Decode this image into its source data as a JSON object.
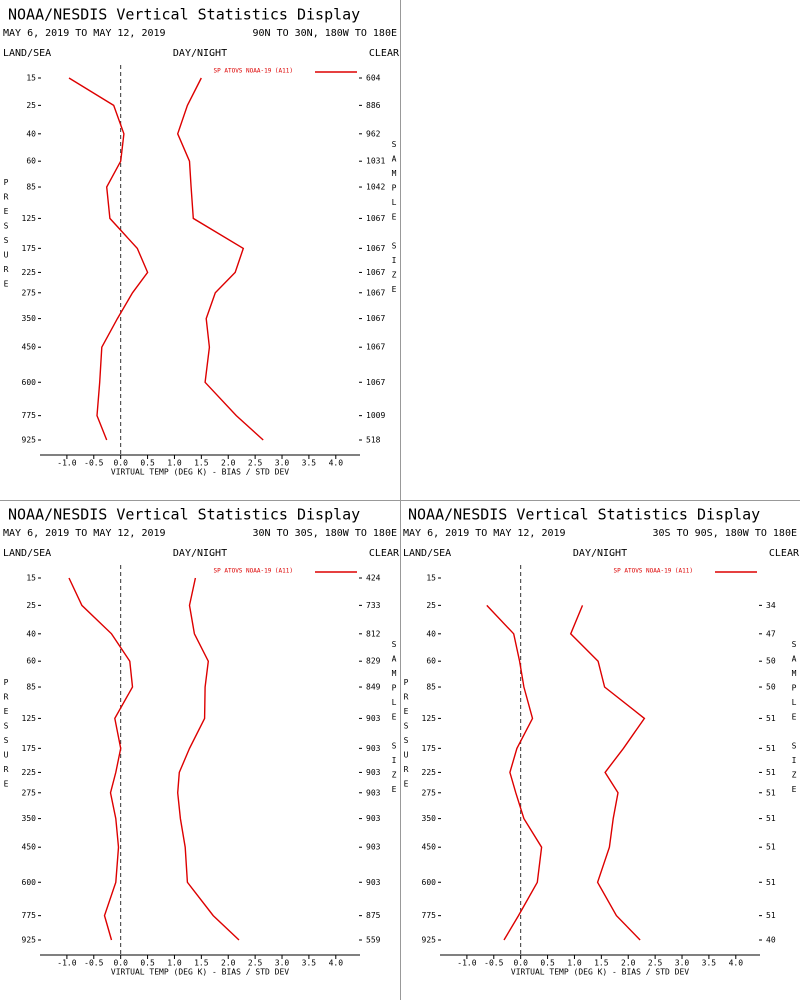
{
  "chart_data": [
    {
      "type": "profile",
      "title": "NOAA/NESDIS Vertical Statistics Display",
      "subtitle": "MAY 6, 2019 TO MAY 12, 2019",
      "region": "90N TO 30N, 180W TO 180E",
      "header_left": "LAND/SEA",
      "header_center": "DAY/NIGHT",
      "header_right": "CLEAR",
      "x_label": "VIRTUAL TEMP (DEG K) - BIAS / STD DEV",
      "y_label": "PRESSURE",
      "y2_label": "SAMPLE SIZE",
      "y": [
        15,
        25,
        40,
        60,
        85,
        125,
        175,
        225,
        275,
        350,
        450,
        600,
        775,
        925
      ],
      "sample_size": [
        604,
        886,
        962,
        1031,
        1042,
        1067,
        1067,
        1067,
        1067,
        1067,
        1067,
        1067,
        1009,
        518
      ],
      "series": [
        {
          "name": "SP ATOVS NOAA-19 (A11)",
          "color": "#dd0000",
          "values": [
            -0.96,
            -0.13,
            0.06,
            0.0,
            -0.26,
            -0.2,
            0.31,
            0.5,
            0.22,
            -0.06,
            -0.35,
            -0.39,
            -0.44,
            -0.26
          ],
          "std_dev": [
            1.5,
            1.24,
            1.06,
            1.28,
            1.31,
            1.35,
            2.28,
            2.13,
            1.76,
            1.59,
            1.65,
            1.57,
            2.15,
            2.65
          ]
        }
      ],
      "xlim": [
        -1.5,
        4.45
      ],
      "xticks": [
        {
          "value": -1,
          "label": "-1.0"
        },
        -0.5,
        {
          "value": 0,
          "label": "0.0"
        },
        0.5,
        {
          "value": 1,
          "label": "1.0"
        },
        1.5,
        {
          "value": 2,
          "label": "2.0"
        },
        2.5,
        {
          "value": 3,
          "label": "3.0"
        },
        3.5,
        {
          "value": 4,
          "label": "4.0"
        }
      ]
    },
    {
      "type": "profile",
      "title": "NOAA/NESDIS Vertical Statistics Display",
      "subtitle": "MAY 6, 2019 TO MAY 12, 2019",
      "region": "30N TO 30S, 180W TO 180E",
      "header_left": "LAND/SEA",
      "header_center": "DAY/NIGHT",
      "header_right": "CLEAR",
      "x_label": "VIRTUAL TEMP (DEG K) - BIAS / STD DEV",
      "y_label": "PRESSURE",
      "y2_label": "SAMPLE SIZE",
      "y": [
        15,
        25,
        40,
        60,
        85,
        125,
        175,
        225,
        275,
        350,
        450,
        600,
        775,
        925
      ],
      "sample_size": [
        424,
        733,
        812,
        829,
        849,
        903,
        903,
        903,
        903,
        903,
        903,
        903,
        875,
        559
      ],
      "series": [
        {
          "name": "SP ATOVS NOAA-19 (A11)",
          "color": "#dd0000",
          "values": [
            -0.96,
            -0.72,
            -0.17,
            0.17,
            0.22,
            -0.11,
            0.0,
            -0.09,
            -0.19,
            -0.09,
            -0.04,
            -0.09,
            -0.3,
            -0.17
          ],
          "std_dev": [
            1.39,
            1.28,
            1.37,
            1.63,
            1.57,
            1.56,
            1.28,
            1.09,
            1.06,
            1.11,
            1.2,
            1.24,
            1.72,
            2.2
          ]
        }
      ],
      "xlim": [
        -1.5,
        4.45
      ],
      "xticks": [
        {
          "value": -1,
          "label": "-1.0"
        },
        -0.5,
        {
          "value": 0,
          "label": "0.0"
        },
        0.5,
        {
          "value": 1,
          "label": "1.0"
        },
        1.5,
        {
          "value": 2,
          "label": "2.0"
        },
        2.5,
        {
          "value": 3,
          "label": "3.0"
        },
        3.5,
        {
          "value": 4,
          "label": "4.0"
        }
      ]
    },
    {
      "type": "profile",
      "title": "NOAA/NESDIS Vertical Statistics Display",
      "subtitle": "MAY 6, 2019 TO MAY 12, 2019",
      "region": "30S TO 90S, 180W TO 180E",
      "header_left": "LAND/SEA",
      "header_center": "DAY/NIGHT",
      "header_right": "CLEAR",
      "x_label": "VIRTUAL TEMP (DEG K) - BIAS / STD DEV",
      "y_label": "PRESSURE",
      "y2_label": "SAMPLE SIZE",
      "y": [
        15,
        25,
        40,
        60,
        85,
        125,
        175,
        225,
        275,
        350,
        450,
        600,
        775,
        925
      ],
      "sample_size": [
        null,
        34,
        47,
        50,
        50,
        51,
        51,
        51,
        51,
        51,
        51,
        51,
        51,
        40
      ],
      "series": [
        {
          "name": "SP ATOVS NOAA-19 (A11)",
          "color": "#dd0000",
          "values": [
            null,
            -0.63,
            -0.13,
            -0.02,
            0.06,
            0.22,
            -0.07,
            -0.2,
            -0.09,
            0.06,
            0.39,
            0.31,
            -0.04,
            -0.31
          ],
          "std_dev": [
            null,
            1.15,
            0.93,
            1.44,
            1.56,
            2.3,
            1.91,
            1.57,
            1.81,
            1.72,
            1.65,
            1.43,
            1.78,
            2.22
          ]
        }
      ],
      "xlim": [
        -1.5,
        4.45
      ],
      "xticks": [
        {
          "value": -1,
          "label": "-1.0"
        },
        -0.5,
        {
          "value": 0,
          "label": "0.0"
        },
        0.5,
        {
          "value": 1,
          "label": "1.0"
        },
        1.5,
        {
          "value": 2,
          "label": "2.0"
        },
        2.5,
        {
          "value": 3,
          "label": "3.0"
        },
        3.5,
        {
          "value": 4,
          "label": "4.0"
        }
      ]
    }
  ]
}
